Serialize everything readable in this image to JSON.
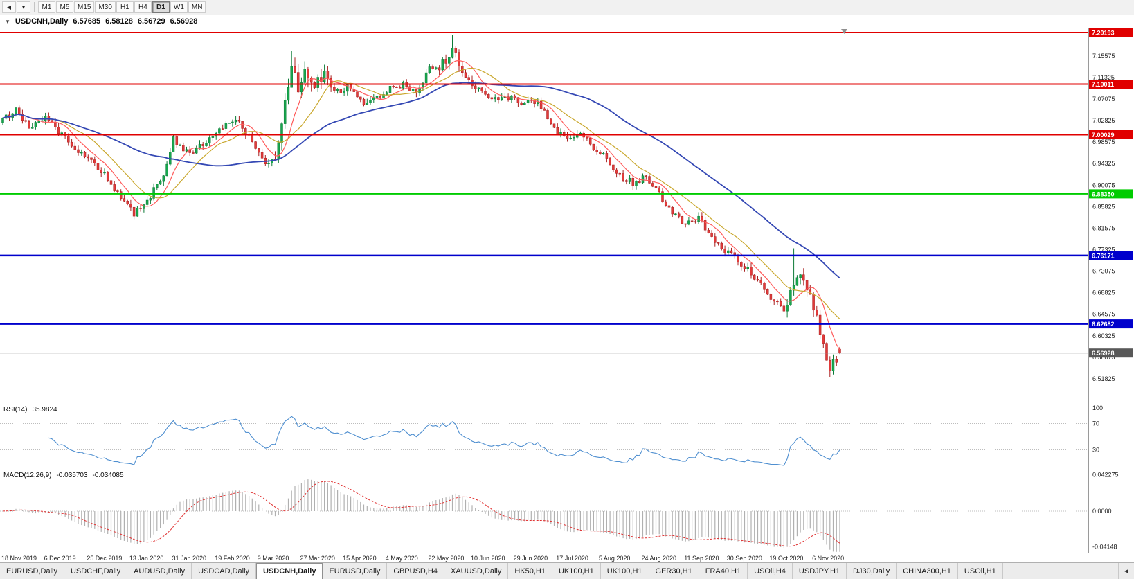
{
  "icons": {
    "toolbar_cursor": "◀",
    "toolbar_dropdown": "▾",
    "collapse_arrow": "▼",
    "tab_scroll_left": "◀"
  },
  "toolbar": {
    "timeframes": [
      "M1",
      "M5",
      "M15",
      "M30",
      "H1",
      "H4",
      "D1",
      "W1",
      "MN"
    ],
    "active_timeframe": "D1"
  },
  "title": {
    "symbol": "USDCNH,Daily",
    "open": "6.57685",
    "high": "6.58128",
    "low": "6.56729",
    "close": "6.56928"
  },
  "rsi": {
    "label": "RSI(14)",
    "value": "35.9824"
  },
  "macd": {
    "label": "MACD(12,26,9)",
    "value_main": "-0.035703",
    "value_signal": "-0.034085"
  },
  "tabbar": {
    "active_index": 4,
    "tabs": [
      "EURUSD,Daily",
      "USDCHF,Daily",
      "AUDUSD,Daily",
      "USDCAD,Daily",
      "USDCNH,Daily",
      "EURUSD,Daily",
      "GBPUSD,H4",
      "XAUUSD,Daily",
      "HK50,H1",
      "UK100,H1",
      "UK100,H1",
      "GER30,H1",
      "FRA40,H1",
      "USOil,H4",
      "USDJPY,H1",
      "DJ30,Daily",
      "CHINA300,H1",
      "USOil,H1"
    ]
  },
  "chart_data": {
    "type": "candlestick",
    "symbol": "USDCNH",
    "period": "Daily",
    "n_bars": 256,
    "bars_per_label": 13,
    "x_axis_dates": [
      "18 Nov 2019",
      "6 Dec 2019",
      "25 Dec 2019",
      "13 Jan 2020",
      "31 Jan 2020",
      "19 Feb 2020",
      "9 Mar 2020",
      "27 Mar 2020",
      "15 Apr 2020",
      "4 May 2020",
      "22 May 2020",
      "10 Jun 2020",
      "29 Jun 2020",
      "17 Jul 2020",
      "5 Aug 2020",
      "24 Aug 2020",
      "11 Sep 2020",
      "30 Sep 2020",
      "19 Oct 2020",
      "6 Nov 2020"
    ],
    "y_axis": {
      "min": 6.469,
      "max": 7.2115,
      "tick_labels": [
        "7.15575",
        "7.11325",
        "7.07075",
        "7.02825",
        "6.98575",
        "6.94325",
        "6.90075",
        "6.85825",
        "6.81575",
        "6.77325",
        "6.73075",
        "6.68825",
        "6.64575",
        "6.60325",
        "6.56075",
        "6.51825"
      ]
    },
    "price_anchors": [
      [
        0,
        7.028
      ],
      [
        4,
        7.048
      ],
      [
        8,
        7.018
      ],
      [
        13,
        7.038
      ],
      [
        18,
        7.0
      ],
      [
        24,
        6.965
      ],
      [
        30,
        6.93
      ],
      [
        36,
        6.875
      ],
      [
        40,
        6.843
      ],
      [
        44,
        6.87
      ],
      [
        49,
        6.925
      ],
      [
        52,
        6.99
      ],
      [
        56,
        6.965
      ],
      [
        60,
        6.975
      ],
      [
        64,
        6.995
      ],
      [
        68,
        7.02
      ],
      [
        72,
        7.028
      ],
      [
        76,
        6.985
      ],
      [
        80,
        6.94
      ],
      [
        83,
        6.955
      ],
      [
        86,
        7.06
      ],
      [
        88,
        7.145
      ],
      [
        90,
        7.08
      ],
      [
        92,
        7.12
      ],
      [
        95,
        7.1
      ],
      [
        98,
        7.115
      ],
      [
        102,
        7.085
      ],
      [
        106,
        7.095
      ],
      [
        110,
        7.063
      ],
      [
        114,
        7.075
      ],
      [
        118,
        7.09
      ],
      [
        122,
        7.1
      ],
      [
        126,
        7.085
      ],
      [
        130,
        7.13
      ],
      [
        134,
        7.14
      ],
      [
        137,
        7.168
      ],
      [
        140,
        7.125
      ],
      [
        144,
        7.095
      ],
      [
        148,
        7.068
      ],
      [
        153,
        7.078
      ],
      [
        158,
        7.062
      ],
      [
        163,
        7.068
      ],
      [
        168,
        7.01
      ],
      [
        172,
        6.988
      ],
      [
        176,
        7.002
      ],
      [
        180,
        6.975
      ],
      [
        184,
        6.952
      ],
      [
        188,
        6.92
      ],
      [
        192,
        6.905
      ],
      [
        196,
        6.918
      ],
      [
        200,
        6.882
      ],
      [
        204,
        6.842
      ],
      [
        208,
        6.826
      ],
      [
        212,
        6.833
      ],
      [
        216,
        6.8
      ],
      [
        220,
        6.772
      ],
      [
        224,
        6.752
      ],
      [
        228,
        6.728
      ],
      [
        232,
        6.697
      ],
      [
        235,
        6.672
      ],
      [
        238,
        6.655
      ],
      [
        241,
        6.705
      ],
      [
        243,
        6.72
      ],
      [
        245,
        6.687
      ],
      [
        247,
        6.662
      ],
      [
        249,
        6.61
      ],
      [
        251,
        6.552
      ],
      [
        252,
        6.535
      ],
      [
        253,
        6.552
      ],
      [
        255,
        6.569
      ]
    ],
    "wick_overrides": [
      {
        "i": 88,
        "high": 7.165
      },
      {
        "i": 137,
        "high": 7.1965
      },
      {
        "i": 241,
        "high": 6.776
      },
      {
        "i": 252,
        "low": 6.5245
      }
    ],
    "high_vol_ranges": [
      [
        82,
        100,
        2.2
      ],
      [
        132,
        140,
        1.5
      ],
      [
        238,
        255,
        1.6
      ]
    ],
    "last_bar": {
      "open": 6.57685,
      "high": 6.58128,
      "low": 6.56729,
      "close": 6.56928
    },
    "hlines": [
      {
        "price": 7.20193,
        "label": "7.20193",
        "color": "#e00000",
        "width": 2
      },
      {
        "price": 7.10011,
        "label": "7.10011",
        "color": "#e00000",
        "width": 2
      },
      {
        "price": 7.00029,
        "label": "7.00029",
        "color": "#e00000",
        "width": 2
      },
      {
        "price": 6.8835,
        "label": "6.88350",
        "color": "#00cc00",
        "width": 2
      },
      {
        "price": 6.76171,
        "label": "6.76171",
        "color": "#0000cc",
        "width": 2.5
      },
      {
        "price": 6.62682,
        "label": "6.62682",
        "color": "#0000cc",
        "width": 2.5
      }
    ],
    "current_price": {
      "value": 6.56928,
      "label": "6.56928",
      "badge_color": "#585858",
      "line_color": "#9a9a9a"
    },
    "moving_averages": [
      {
        "name": "ma-fast-red",
        "period": 8,
        "color": "#ff5a5a",
        "width": 1.2
      },
      {
        "name": "ma-mid-yellow",
        "period": 16,
        "color": "#c9a72c",
        "width": 1.2
      },
      {
        "name": "ma-slow-blue",
        "period": 50,
        "color": "#3448b4",
        "width": 1.8
      }
    ],
    "indicators": {
      "rsi": {
        "period": 14,
        "current": 35.9824,
        "color": "#4f8fd0",
        "levels": [
          70,
          30
        ],
        "range": [
          0,
          100
        ],
        "axis_labels": [
          "100",
          "70",
          "30"
        ]
      },
      "macd": {
        "fast": 12,
        "slow": 26,
        "signal": 9,
        "current_main": -0.035703,
        "current_signal": -0.034085,
        "hist_color": "#b0b0b0",
        "signal_color": "#e03030",
        "range": [
          -0.0485,
          0.0485
        ],
        "axis_labels": [
          {
            "text": "0.042275",
            "value": 0.042275
          },
          {
            "text": "0.0000",
            "value": 0
          },
          {
            "text": "-0.04148",
            "value": -0.04148
          }
        ]
      }
    },
    "colors": {
      "up_fill": "#17a74e",
      "up_stroke": "#0b7a36",
      "down_fill": "#e23b3b",
      "down_stroke": "#a81f1f",
      "axis_line": "#9a9a9a",
      "axis_text": "#1a1a1a",
      "level_dotted": "#bdbdbd"
    }
  }
}
